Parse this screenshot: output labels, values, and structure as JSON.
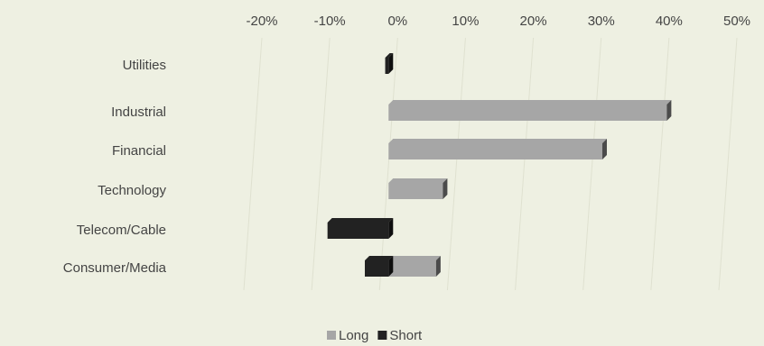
{
  "chart_data": {
    "type": "bar",
    "orientation": "horizontal",
    "stacked": true,
    "categories": [
      "Utilities",
      "Industrial",
      "Financial",
      "Technology",
      "Telecom/Cable",
      "Consumer/Media"
    ],
    "series": [
      {
        "name": "Long",
        "color": "#a6a6a6",
        "values": [
          0,
          41,
          31.5,
          8,
          0,
          7
        ]
      },
      {
        "name": "Short",
        "color": "#222222",
        "values": [
          -0.5,
          0,
          0,
          0,
          -9,
          -3.5
        ]
      }
    ],
    "xlim": [
      -20,
      50
    ],
    "xticks": [
      {
        "value": -20,
        "label": "-20%"
      },
      {
        "value": -10,
        "label": "-10%"
      },
      {
        "value": 0,
        "label": "0%"
      },
      {
        "value": 10,
        "label": "10%"
      },
      {
        "value": 20,
        "label": "20%"
      },
      {
        "value": 30,
        "label": "30%"
      },
      {
        "value": 40,
        "label": "40%"
      },
      {
        "value": 50,
        "label": "50%"
      }
    ],
    "grid": true,
    "legend": "bottom"
  }
}
